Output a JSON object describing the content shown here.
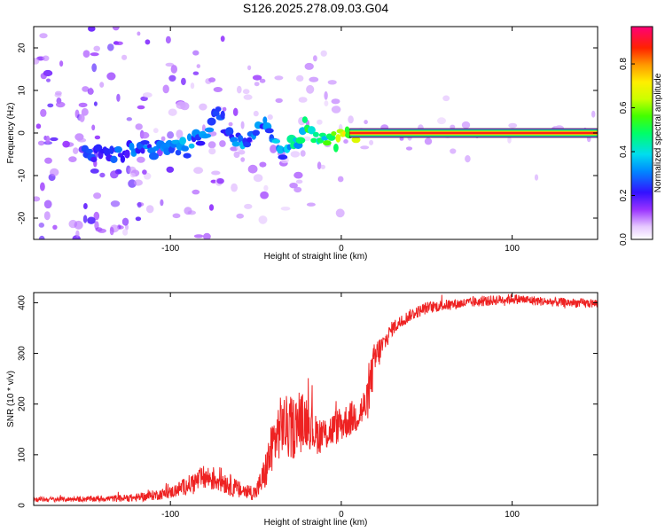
{
  "title": "S126.2025.278.09.03.G04",
  "chart_data": [
    {
      "type": "heatmap",
      "title": "S126.2025.278.09.03.G04",
      "xlabel": "Height of straight line (km)",
      "ylabel": "Frequency (Hz)",
      "xlim": [
        -180,
        150
      ],
      "ylim": [
        -25,
        25
      ],
      "xticks": [
        -100,
        0,
        100
      ],
      "yticks": [
        -20,
        -10,
        0,
        10,
        20
      ],
      "colorbar": {
        "label": "Normalized spectral amplitude",
        "range": [
          0,
          0.97
        ],
        "ticks": [
          0.0,
          0.2,
          0.4,
          0.6,
          0.8
        ]
      },
      "ridge": {
        "x": [
          -140,
          -125,
          -110,
          -100,
          -90,
          -80,
          -75,
          -72,
          -65,
          -55,
          -48,
          -45,
          -40,
          -35,
          -30,
          -25,
          -22,
          -19,
          -16,
          -12,
          -8,
          -4,
          0,
          5,
          10,
          20,
          50,
          75,
          100,
          150
        ],
        "y": [
          -5,
          -4.5,
          -4,
          -3,
          -2.5,
          -0.5,
          3,
          5,
          -1,
          -2,
          1,
          3,
          -1.5,
          -4,
          -2.5,
          -2,
          0.5,
          2,
          0,
          -2,
          -1.5,
          -0.5,
          -0.5,
          0,
          0,
          0,
          0,
          0,
          0,
          0
        ],
        "amplitude": [
          0.25,
          0.28,
          0.3,
          0.32,
          0.32,
          0.3,
          0.35,
          0.3,
          0.3,
          0.32,
          0.3,
          0.28,
          0.35,
          0.32,
          0.4,
          0.42,
          0.5,
          0.55,
          0.5,
          0.45,
          0.5,
          0.55,
          0.6,
          0.75,
          0.9,
          0.92,
          0.93,
          0.93,
          0.93,
          0.93
        ]
      }
    },
    {
      "type": "line",
      "xlabel": "Height of straight line (km)",
      "ylabel": "SNR (10 * v/v)",
      "xlim": [
        -180,
        150
      ],
      "ylim": [
        0,
        420
      ],
      "xticks": [
        -100,
        0,
        100
      ],
      "yticks": [
        0,
        100,
        200,
        300,
        400
      ],
      "series": [
        {
          "name": "SNR",
          "color": "#ee2222",
          "x": [
            -180,
            -160,
            -140,
            -120,
            -100,
            -90,
            -80,
            -70,
            -60,
            -50,
            -45,
            -40,
            -35,
            -30,
            -25,
            -20,
            -15,
            -10,
            -5,
            0,
            5,
            10,
            15,
            18,
            20,
            25,
            30,
            40,
            50,
            60,
            75,
            90,
            100,
            120,
            150
          ],
          "y": [
            12,
            12,
            13,
            15,
            25,
            40,
            55,
            50,
            30,
            25,
            60,
            120,
            160,
            150,
            160,
            170,
            140,
            140,
            150,
            160,
            170,
            180,
            200,
            260,
            290,
            320,
            350,
            375,
            390,
            395,
            400,
            405,
            408,
            402,
            398
          ],
          "noise": [
            5,
            5,
            6,
            8,
            12,
            18,
            25,
            25,
            18,
            15,
            35,
            55,
            60,
            65,
            60,
            55,
            40,
            35,
            35,
            35,
            35,
            35,
            40,
            45,
            40,
            20,
            15,
            12,
            12,
            11,
            10,
            10,
            10,
            9,
            9
          ]
        }
      ]
    }
  ]
}
